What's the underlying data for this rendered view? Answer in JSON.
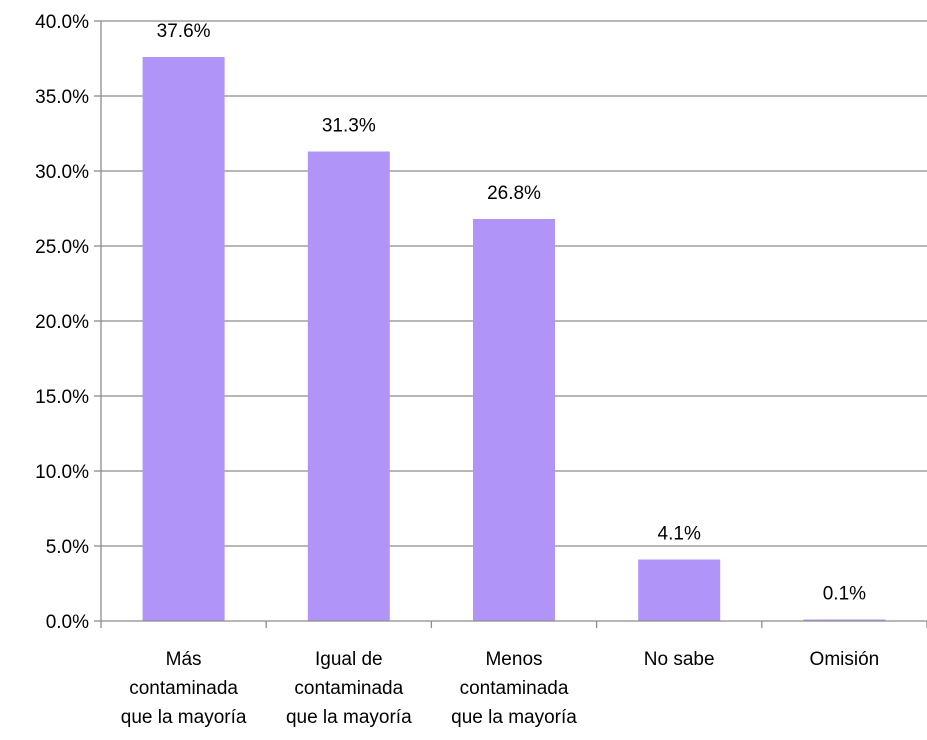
{
  "chart_data": {
    "type": "bar",
    "title": "",
    "xlabel": "",
    "ylabel": "",
    "categories": [
      [
        "Más",
        "contaminada",
        "que la mayoría"
      ],
      [
        "Igual de",
        "contaminada",
        "que la mayoría"
      ],
      [
        "Menos",
        "contaminada",
        "que la mayoría"
      ],
      [
        "No sabe"
      ],
      [
        "Omisión"
      ]
    ],
    "values": [
      37.6,
      31.3,
      26.8,
      4.1,
      0.1
    ],
    "data_labels": [
      "37.6%",
      "31.3%",
      "26.8%",
      "4.1%",
      "0.1%"
    ],
    "ylim": [
      0,
      40
    ],
    "yticks": [
      0,
      5,
      10,
      15,
      20,
      25,
      30,
      35,
      40
    ],
    "ytick_labels": [
      "0.0%",
      "5.0%",
      "10.0%",
      "15.0%",
      "20.0%",
      "25.0%",
      "30.0%",
      "35.0%",
      "40.0%"
    ],
    "grid": true,
    "legend": "none",
    "colors": {
      "bar": "#b094f8",
      "grid": "#8c8c8c",
      "axis": "#8c8c8c"
    }
  }
}
